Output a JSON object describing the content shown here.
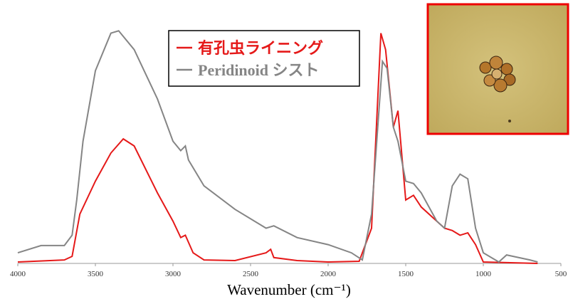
{
  "chart_data": {
    "type": "line",
    "x_label": "Wavenumber (cm⁻¹)",
    "xlim": [
      4000,
      500
    ],
    "xticks": [
      4000,
      3500,
      3000,
      2500,
      2000,
      1500,
      1000,
      500
    ],
    "ylim": [
      0,
      100
    ],
    "series": [
      {
        "name": "有孔虫ライニング",
        "color": "#e51919",
        "x": [
          4000,
          3700,
          3650,
          3600,
          3500,
          3400,
          3320,
          3250,
          3100,
          3000,
          2950,
          2920,
          2870,
          2800,
          2600,
          2400,
          2370,
          2350,
          2200,
          2000,
          1800,
          1720,
          1660,
          1630,
          1580,
          1550,
          1500,
          1450,
          1400,
          1300,
          1250,
          1200,
          1150,
          1100,
          1050,
          1000,
          650
        ],
        "values": [
          0.6,
          1.5,
          3,
          21,
          35,
          47,
          53,
          50,
          30,
          18,
          11,
          12,
          4.5,
          1.5,
          1.2,
          4.5,
          6,
          2.5,
          1.2,
          0.6,
          0.9,
          15,
          98,
          91,
          58,
          65,
          27,
          29,
          24,
          18,
          15,
          14,
          12,
          13,
          8,
          0.6,
          0
        ]
      },
      {
        "name": "Peridinoid シスト",
        "color": "#858585",
        "x": [
          4000,
          3850,
          3700,
          3650,
          3620,
          3580,
          3500,
          3400,
          3350,
          3250,
          3100,
          3000,
          2950,
          2920,
          2900,
          2800,
          2600,
          2400,
          2350,
          2200,
          2000,
          1850,
          1780,
          1720,
          1650,
          1620,
          1580,
          1550,
          1500,
          1450,
          1400,
          1300,
          1250,
          1200,
          1150,
          1100,
          1050,
          1000,
          900,
          850,
          700,
          650
        ],
        "values": [
          4.5,
          7.6,
          7.6,
          12,
          27,
          52,
          82,
          98,
          99,
          91,
          70,
          52,
          48,
          50,
          44,
          33,
          23,
          15,
          16,
          11,
          8,
          4.5,
          1.5,
          21,
          86,
          83,
          58,
          52,
          35,
          34,
          30,
          18,
          15,
          33,
          38,
          36,
          15,
          4.5,
          0.6,
          3.6,
          1.5,
          0.6
        ]
      }
    ]
  }
}
